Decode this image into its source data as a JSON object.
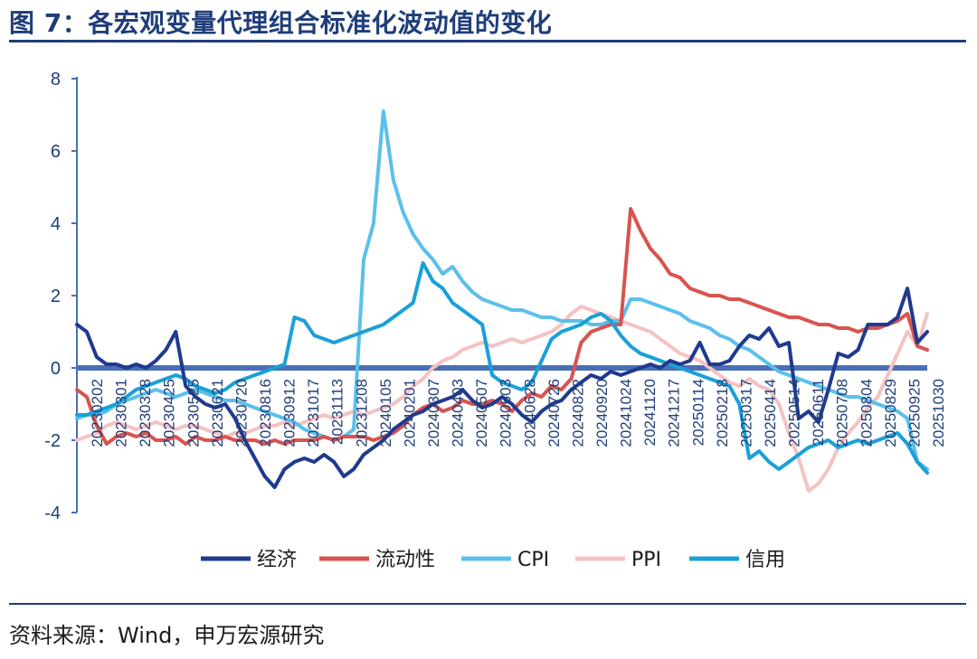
{
  "header": {
    "title": "图 7：各宏观变量代理组合标准化波动值的变化"
  },
  "footer": {
    "source": "资料来源：Wind，申万宏源研究"
  },
  "chart_data": {
    "type": "line",
    "ylim": [
      -4,
      8
    ],
    "yticks": [
      -4,
      -2,
      0,
      2,
      4,
      6,
      8
    ],
    "x_tick_labels": [
      "20230202",
      "20230301",
      "20230328",
      "20230425",
      "20230525",
      "20230621",
      "20230720",
      "20230816",
      "20230912",
      "20231017",
      "20231113",
      "20231208",
      "20240105",
      "20240201",
      "20240307",
      "20240403",
      "20240507",
      "20240603",
      "20240628",
      "20240726",
      "20240822",
      "20240920",
      "20241024",
      "20241120",
      "20241217",
      "20250114",
      "20250218",
      "20250317",
      "20250414",
      "20250514",
      "20250611",
      "20250708",
      "20250804",
      "20250829",
      "20250925",
      "20251030"
    ],
    "legend_position": "bottom",
    "series": [
      {
        "name": "经济",
        "color": "#1f3a8f",
        "values": [
          1.2,
          1.0,
          0.3,
          0.1,
          0.1,
          0.0,
          0.1,
          0.0,
          0.2,
          0.5,
          1.0,
          -0.5,
          -0.8,
          -1.0,
          -1.1,
          -1.0,
          -1.4,
          -2.0,
          -2.5,
          -3.0,
          -3.3,
          -2.8,
          -2.6,
          -2.5,
          -2.6,
          -2.4,
          -2.6,
          -3.0,
          -2.8,
          -2.4,
          -2.2,
          -2.0,
          -1.7,
          -1.5,
          -1.3,
          -1.2,
          -1.0,
          -0.9,
          -0.8,
          -0.6,
          -0.9,
          -1.1,
          -1.0,
          -0.8,
          -1.0,
          -1.3,
          -1.5,
          -1.2,
          -1.0,
          -0.9,
          -0.6,
          -0.4,
          -0.2,
          -0.3,
          -0.1,
          -0.2,
          -0.1,
          0.0,
          0.1,
          0.0,
          0.2,
          0.1,
          0.2,
          0.7,
          0.1,
          0.1,
          0.2,
          0.6,
          0.9,
          0.8,
          1.1,
          0.6,
          0.7,
          -1.4,
          -1.2,
          -1.5,
          -0.6,
          0.4,
          0.3,
          0.5,
          1.2,
          1.2,
          1.2,
          1.4,
          2.2,
          0.7,
          1.0
        ]
      },
      {
        "name": "流动性",
        "color": "#d9534f",
        "values": [
          -0.6,
          -0.8,
          -1.6,
          -2.1,
          -1.9,
          -1.8,
          -1.9,
          -1.8,
          -2.0,
          -2.0,
          -1.9,
          -2.1,
          -1.9,
          -2.0,
          -2.0,
          -1.9,
          -2.0,
          -2.0,
          -2.0,
          -2.1,
          -2.0,
          -2.1,
          -2.0,
          -2.0,
          -2.0,
          -1.9,
          -2.0,
          -1.9,
          -1.9,
          -1.9,
          -2.0,
          -1.9,
          -1.8,
          -1.6,
          -1.3,
          -1.1,
          -1.0,
          -1.2,
          -1.1,
          -0.9,
          -1.0,
          -1.0,
          -0.9,
          -1.0,
          -1.2,
          -0.9,
          -0.7,
          -0.8,
          -0.5,
          -0.6,
          -0.3,
          0.7,
          1.0,
          1.1,
          1.2,
          1.2,
          4.4,
          3.8,
          3.3,
          3.0,
          2.6,
          2.5,
          2.2,
          2.1,
          2.0,
          2.0,
          1.9,
          1.9,
          1.8,
          1.7,
          1.6,
          1.5,
          1.4,
          1.4,
          1.3,
          1.2,
          1.2,
          1.1,
          1.1,
          1.0,
          1.1,
          1.1,
          1.2,
          1.3,
          1.5,
          0.6,
          0.5
        ]
      },
      {
        "name": "CPI",
        "color": "#5bc0eb",
        "values": [
          -1.4,
          -1.3,
          -1.3,
          -1.2,
          -1.0,
          -0.9,
          -0.8,
          -0.7,
          -0.6,
          -0.7,
          -0.8,
          -0.7,
          -0.6,
          -0.7,
          -0.8,
          -0.9,
          -0.9,
          -1.0,
          -1.1,
          -1.2,
          -1.3,
          -1.4,
          -1.5,
          -1.7,
          -1.8,
          -1.9,
          -2.0,
          -1.9,
          -1.7,
          3.0,
          4.0,
          7.1,
          5.2,
          4.3,
          3.7,
          3.3,
          3.0,
          2.6,
          2.8,
          2.4,
          2.1,
          1.9,
          1.8,
          1.7,
          1.6,
          1.6,
          1.5,
          1.4,
          1.4,
          1.3,
          1.3,
          1.3,
          1.2,
          1.2,
          1.3,
          1.3,
          1.9,
          1.9,
          1.8,
          1.7,
          1.6,
          1.5,
          1.3,
          1.2,
          1.1,
          0.9,
          0.8,
          0.6,
          0.5,
          0.3,
          0.1,
          -0.1,
          -0.2,
          -0.3,
          -0.4,
          -0.5,
          -0.6,
          -0.7,
          -0.8,
          -0.8,
          -0.9,
          -1.0,
          -1.1,
          -1.2,
          -1.4,
          -2.6,
          -2.8
        ]
      },
      {
        "name": "PPI",
        "color": "#f4c2c2",
        "values": [
          -2.0,
          -1.9,
          -1.8,
          -1.6,
          -1.5,
          -1.6,
          -1.7,
          -1.6,
          -1.5,
          -1.6,
          -1.7,
          -1.6,
          -1.6,
          -1.7,
          -1.8,
          -1.9,
          -1.8,
          -1.8,
          -1.7,
          -1.6,
          -1.6,
          -1.5,
          -1.6,
          -1.5,
          -1.4,
          -1.3,
          -1.4,
          -1.3,
          -1.2,
          -1.3,
          -1.2,
          -1.1,
          -1.0,
          -0.8,
          -0.5,
          -0.3,
          0.0,
          0.2,
          0.3,
          0.5,
          0.6,
          0.7,
          0.6,
          0.7,
          0.8,
          0.7,
          0.8,
          0.9,
          1.0,
          1.2,
          1.5,
          1.7,
          1.6,
          1.5,
          1.4,
          1.3,
          1.2,
          1.1,
          1.0,
          0.8,
          0.6,
          0.4,
          0.3,
          0.2,
          0.0,
          -0.2,
          -0.4,
          -0.5,
          -0.3,
          -0.5,
          -0.6,
          -1.0,
          -1.8,
          -2.5,
          -3.4,
          -3.2,
          -2.8,
          -2.2,
          -1.8,
          -1.5,
          -1.1,
          -0.8,
          -0.2,
          0.4,
          1.0,
          0.6,
          1.5
        ]
      },
      {
        "name": "信用",
        "color": "#1aa0d8",
        "values": [
          -1.3,
          -1.3,
          -1.2,
          -1.1,
          -1.0,
          -0.8,
          -0.6,
          -0.5,
          -0.4,
          -0.3,
          -0.2,
          -0.3,
          -0.5,
          -0.6,
          -0.7,
          -0.6,
          -0.4,
          -0.3,
          -0.2,
          -0.1,
          0.0,
          0.1,
          1.4,
          1.3,
          0.9,
          0.8,
          0.7,
          0.8,
          0.9,
          1.0,
          1.1,
          1.2,
          1.4,
          1.6,
          1.8,
          2.9,
          2.4,
          2.2,
          1.8,
          1.6,
          1.4,
          1.2,
          -0.2,
          -0.4,
          -0.5,
          -0.6,
          -0.4,
          0.2,
          0.8,
          1.0,
          1.1,
          1.2,
          1.4,
          1.5,
          1.3,
          0.9,
          0.6,
          0.4,
          0.3,
          0.2,
          0.1,
          0.0,
          -0.1,
          -0.2,
          -0.3,
          -0.4,
          -0.5,
          -1.0,
          -2.5,
          -2.3,
          -2.6,
          -2.8,
          -2.6,
          -2.4,
          -2.2,
          -2.1,
          -2.0,
          -2.2,
          -2.1,
          -2.0,
          -2.1,
          -2.0,
          -1.9,
          -1.8,
          -2.1,
          -2.6,
          -2.9
        ]
      }
    ]
  }
}
